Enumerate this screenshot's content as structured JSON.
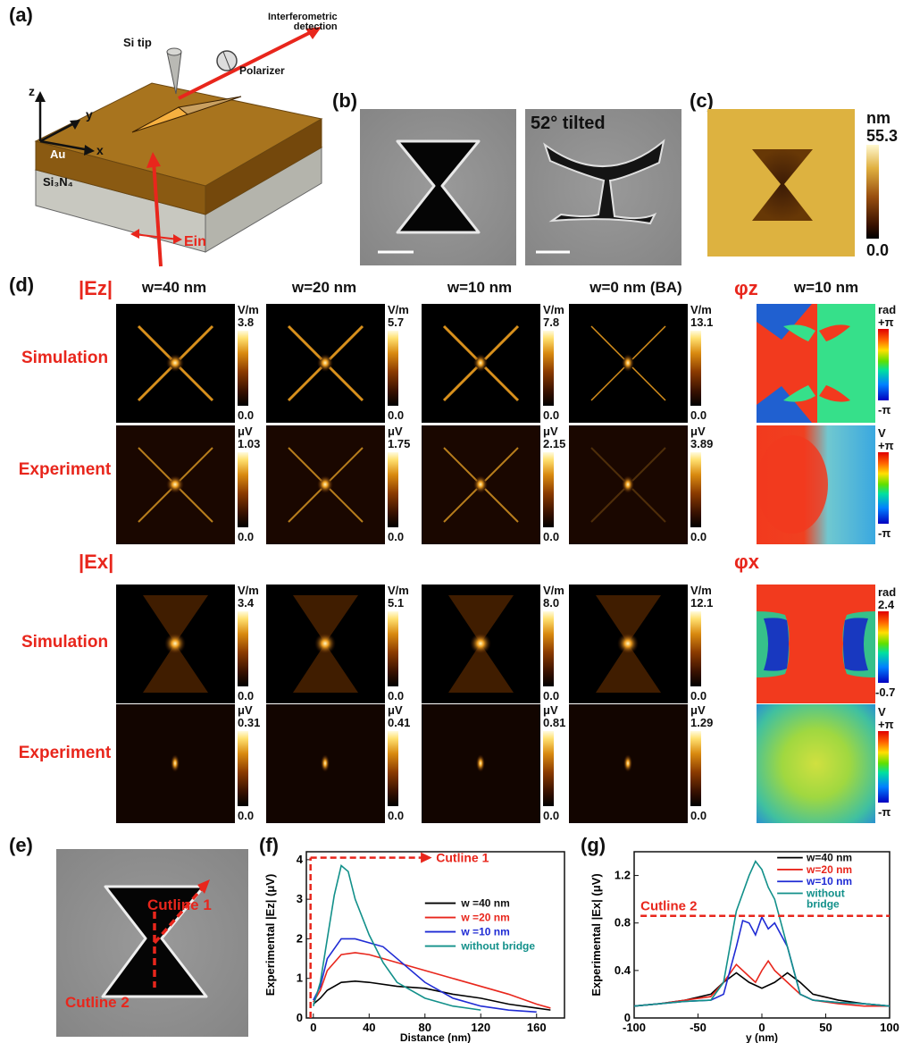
{
  "panels": {
    "a": "(a)",
    "b": "(b)",
    "c": "(c)",
    "d": "(d)",
    "e": "(e)",
    "f": "(f)",
    "g": "(g)"
  },
  "panel_a": {
    "si_tip": "Si tip",
    "interferometric": "Interferometric",
    "detection": "detection",
    "polarizer": "Polarizer",
    "axis_z": "z",
    "axis_y": "y",
    "axis_x": "x",
    "au": "Au",
    "si3n4": "Si₃N₄",
    "ein": "Ein"
  },
  "panel_b": {
    "tilt_label": "52° tilted"
  },
  "panel_c": {
    "unit": "nm",
    "max": "55.3",
    "min": "0.0"
  },
  "panel_d": {
    "ez_label": "|Ez|",
    "ex_label": "|Ex|",
    "phiz_label": "φz",
    "phix_label": "φx",
    "phiz_col": "w=10 nm",
    "columns": [
      "w=40 nm",
      "w=20 nm",
      "w=10 nm",
      "w=0 nm (BA)"
    ],
    "row_sim": "Simulation",
    "row_exp": "Experiment",
    "ez_sim": {
      "unit": "V/m",
      "max": [
        "3.8",
        "5.7",
        "7.8",
        "13.1"
      ],
      "min": "0.0"
    },
    "ez_exp": {
      "unit": "μV",
      "max": [
        "1.03",
        "1.75",
        "2.15",
        "3.89"
      ],
      "min": "0.0"
    },
    "ex_sim": {
      "unit": "V/m",
      "max": [
        "3.4",
        "5.1",
        "8.0",
        "12.1"
      ],
      "min": "0.0"
    },
    "ex_exp": {
      "unit": "μV",
      "max": [
        "0.31",
        "0.41",
        "0.81",
        "1.29"
      ],
      "min": "0.0"
    },
    "phase_z_sim": {
      "unit": "rad",
      "top": "+π",
      "bottom": "-π"
    },
    "phase_z_exp": {
      "unit": "V",
      "top": "+π",
      "bottom": "-π"
    },
    "phase_x_sim": {
      "unit": "rad",
      "top": "2.4",
      "bottom": "-0.7"
    },
    "phase_x_exp": {
      "unit": "V",
      "top": "+π",
      "bottom": "-π"
    }
  },
  "panel_e": {
    "cutline1": "Cutline 1",
    "cutline2": "Cutline 2"
  },
  "chart_data": [
    {
      "type": "line",
      "panel": "f",
      "xlabel": "Distance (nm)",
      "ylabel": "Experimental |Ez| (μV)",
      "xlim": [
        -5,
        180
      ],
      "ylim": [
        0,
        4.2
      ],
      "xticks": [
        0,
        40,
        80,
        120,
        160
      ],
      "yticks": [
        0,
        1,
        2,
        3,
        4
      ],
      "annotation": "Cutline 1",
      "series": [
        {
          "name": "w =40 nm",
          "color": "#000000",
          "x": [
            0,
            5,
            10,
            20,
            30,
            40,
            60,
            80,
            100,
            120,
            140,
            160,
            170
          ],
          "y": [
            0.35,
            0.5,
            0.7,
            0.9,
            0.93,
            0.9,
            0.8,
            0.75,
            0.6,
            0.5,
            0.35,
            0.25,
            0.2
          ]
        },
        {
          "name": "w =20 nm",
          "color": "#e8261c",
          "x": [
            0,
            5,
            10,
            20,
            30,
            40,
            60,
            80,
            100,
            120,
            140,
            160,
            170
          ],
          "y": [
            0.4,
            0.7,
            1.2,
            1.6,
            1.65,
            1.6,
            1.4,
            1.2,
            1.0,
            0.8,
            0.6,
            0.35,
            0.25
          ]
        },
        {
          "name": "w =10 nm",
          "color": "#1f2bd4",
          "x": [
            0,
            5,
            10,
            20,
            30,
            40,
            50,
            60,
            80,
            100,
            120,
            140,
            160
          ],
          "y": [
            0.45,
            0.8,
            1.5,
            2.0,
            2.0,
            1.9,
            1.8,
            1.5,
            0.9,
            0.5,
            0.3,
            0.2,
            0.15
          ]
        },
        {
          "name": "without bridge",
          "color": "#12908a",
          "x": [
            0,
            5,
            10,
            15,
            20,
            25,
            30,
            40,
            50,
            60,
            80,
            100,
            120
          ],
          "y": [
            0.3,
            0.9,
            2.0,
            3.1,
            3.85,
            3.7,
            3.0,
            2.1,
            1.4,
            0.9,
            0.5,
            0.3,
            0.2
          ]
        }
      ]
    },
    {
      "type": "line",
      "panel": "g",
      "xlabel": "y (nm)",
      "ylabel": "Experimental |Ex| (μV)",
      "xlim": [
        -100,
        100
      ],
      "ylim": [
        0,
        1.4
      ],
      "xticks": [
        -100,
        -50,
        0,
        50,
        100
      ],
      "yticks": [
        0,
        0.4,
        0.8,
        1.2
      ],
      "annotation": "Cutline 2",
      "series": [
        {
          "name": "w=40 nm",
          "color": "#000000",
          "x": [
            -100,
            -80,
            -60,
            -40,
            -30,
            -20,
            -10,
            0,
            10,
            20,
            30,
            40,
            60,
            80,
            100
          ],
          "y": [
            0.1,
            0.12,
            0.15,
            0.2,
            0.3,
            0.38,
            0.3,
            0.25,
            0.3,
            0.38,
            0.3,
            0.2,
            0.15,
            0.12,
            0.1
          ]
        },
        {
          "name": "w=20 nm",
          "color": "#e8261c",
          "x": [
            -100,
            -80,
            -60,
            -40,
            -30,
            -20,
            -10,
            -5,
            0,
            5,
            10,
            20,
            30,
            40,
            60,
            80,
            100
          ],
          "y": [
            0.1,
            0.12,
            0.15,
            0.18,
            0.3,
            0.45,
            0.35,
            0.3,
            0.4,
            0.48,
            0.4,
            0.3,
            0.2,
            0.15,
            0.12,
            0.1,
            0.1
          ]
        },
        {
          "name": "w=10 nm",
          "color": "#1f2bd4",
          "x": [
            -100,
            -80,
            -60,
            -40,
            -30,
            -20,
            -15,
            -10,
            -5,
            0,
            5,
            10,
            20,
            30,
            40,
            60,
            80,
            100
          ],
          "y": [
            0.1,
            0.12,
            0.14,
            0.15,
            0.2,
            0.6,
            0.82,
            0.8,
            0.7,
            0.85,
            0.75,
            0.8,
            0.6,
            0.2,
            0.15,
            0.13,
            0.12,
            0.1
          ]
        },
        {
          "name": "without bridge",
          "color": "#12908a",
          "x": [
            -100,
            -80,
            -60,
            -40,
            -30,
            -20,
            -10,
            -5,
            0,
            5,
            10,
            20,
            30,
            40,
            60,
            80,
            100
          ],
          "y": [
            0.1,
            0.12,
            0.14,
            0.15,
            0.3,
            0.9,
            1.2,
            1.32,
            1.25,
            1.1,
            1.0,
            0.6,
            0.2,
            0.15,
            0.13,
            0.12,
            0.1
          ]
        }
      ],
      "legend_labels": [
        "w=40 nm",
        "w=20 nm",
        "w=10 nm",
        "without",
        "bridge"
      ]
    }
  ]
}
